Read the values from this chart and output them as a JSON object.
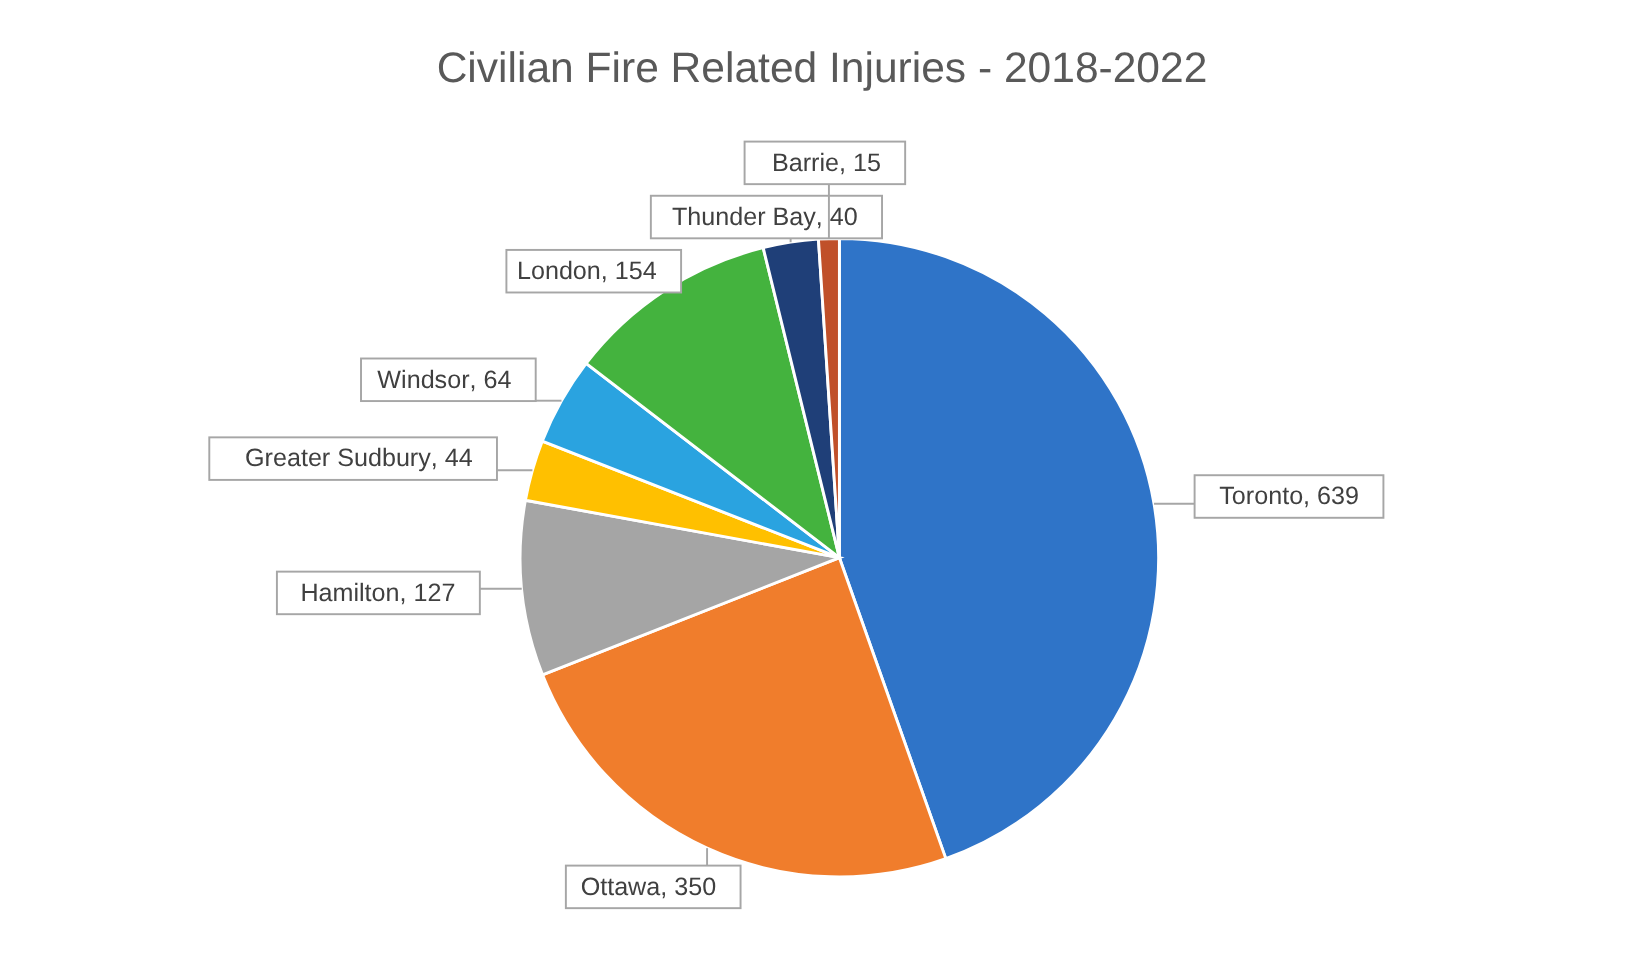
{
  "chart_data": {
    "type": "pie",
    "title": "Civilian Fire Related Injuries - 2018-2022",
    "categories": [
      "Toronto",
      "Ottawa",
      "Hamilton",
      "Greater Sudbury",
      "Windsor",
      "London",
      "Thunder Bay",
      "Barrie"
    ],
    "values": [
      639,
      350,
      127,
      44,
      64,
      154,
      40,
      15
    ],
    "colors": [
      "#2f74c8",
      "#f07d2c",
      "#a5a5a5",
      "#ffc000",
      "#2aa3e0",
      "#44b33e",
      "#1f3f78",
      "#c0502a"
    ],
    "value_labels": [
      ", 639",
      ", 350",
      ", 127",
      ", 44",
      ", 64",
      ", 154",
      ", 40",
      ", 15"
    ]
  }
}
